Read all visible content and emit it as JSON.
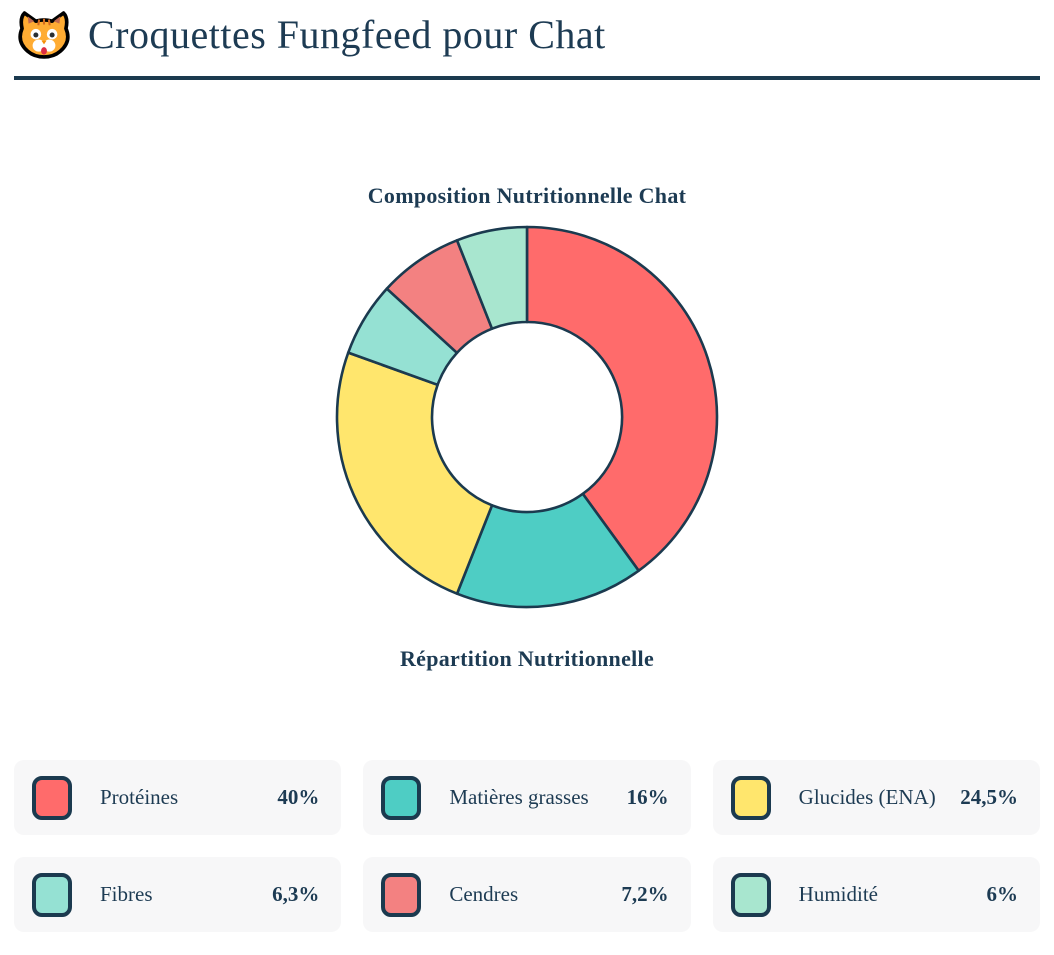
{
  "header": {
    "icon": "cat-face-icon",
    "title": "Croquettes Fungfeed pour Chat"
  },
  "chart_data": {
    "type": "pie",
    "variant": "donut",
    "title": "Composition Nutritionnelle Chat",
    "subtitle": "Répartition Nutritionnelle",
    "start_angle_deg": 0,
    "direction": "clockwise",
    "inner_radius_ratio": 0.5,
    "categories": [
      "Protéines",
      "Matières grasses",
      "Glucides (ENA)",
      "Fibres",
      "Cendres",
      "Humidité"
    ],
    "values": [
      40,
      16,
      24.5,
      6.3,
      7.2,
      6
    ],
    "value_labels": [
      "40%",
      "16%",
      "24,5%",
      "6,3%",
      "7,2%",
      "6%"
    ],
    "colors": [
      "#FF6B6B",
      "#4ECDC4",
      "#FFE66D",
      "#95E1D3",
      "#F38181",
      "#A8E6CF"
    ],
    "stroke_color": "#1b3a4f",
    "legend_position": "bottom"
  },
  "colors": {
    "navy": "#1b3a4f",
    "text": "#1d3b53",
    "card-bg": "#f7f7f8"
  }
}
